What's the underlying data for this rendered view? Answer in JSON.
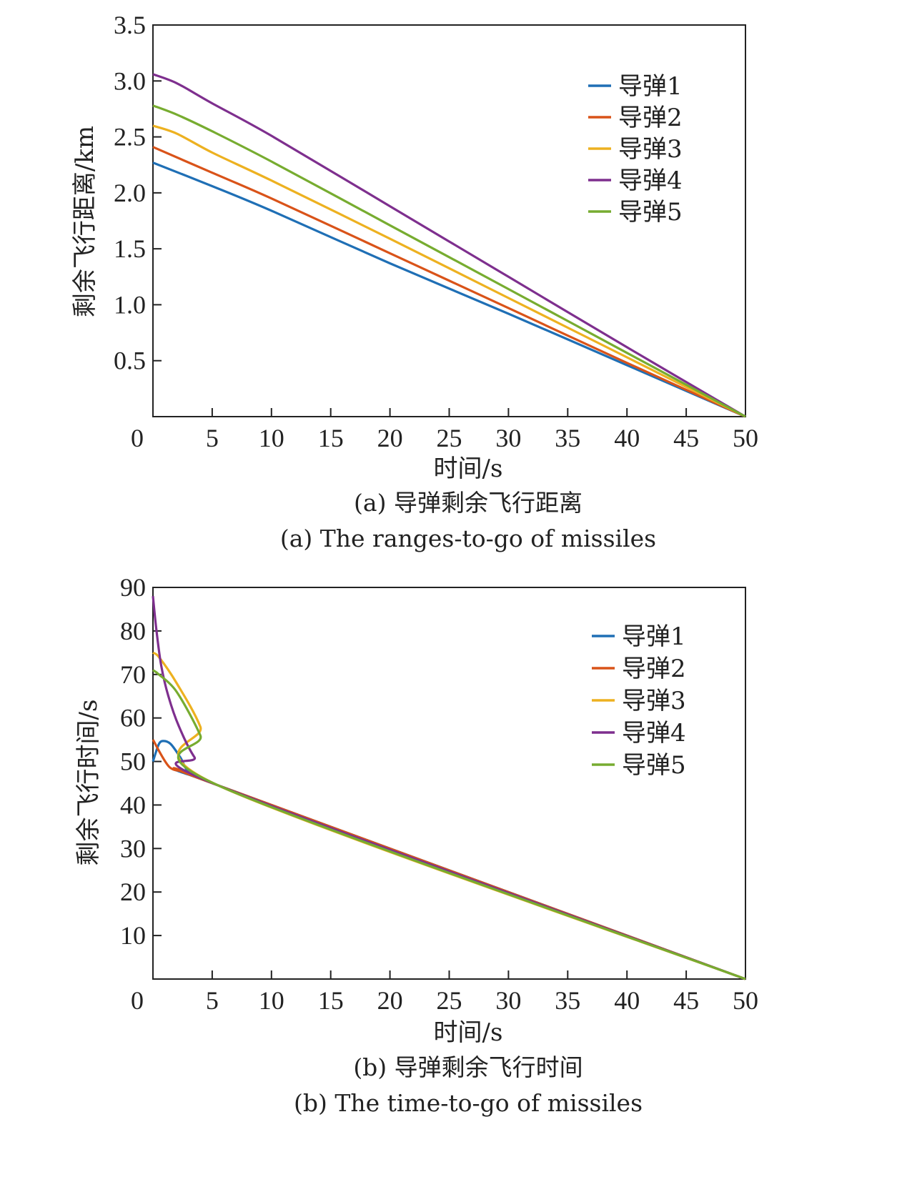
{
  "chart_data": [
    {
      "type": "line",
      "panel": "a",
      "xlabel": "时间/s",
      "ylabel": "剩余飞行距离/km",
      "caption_cn": "(a) 导弹剩余飞行距离",
      "caption_en": "(a) The ranges-to-go of missiles",
      "xlim": [
        0,
        50
      ],
      "ylim": [
        0,
        3.5
      ],
      "xticks": [
        "0",
        "5",
        "10",
        "15",
        "20",
        "25",
        "30",
        "35",
        "40",
        "45",
        "50"
      ],
      "yticks": [
        "0.5",
        "1.0",
        "1.5",
        "2.0",
        "2.5",
        "3.0",
        "3.5"
      ],
      "legend_position": "top-right",
      "series": [
        {
          "name": "导弹1",
          "color": "#1f6fb5",
          "x": [
            0,
            5,
            10,
            20,
            30,
            40,
            50
          ],
          "y": [
            2.27,
            2.06,
            1.84,
            1.37,
            0.92,
            0.46,
            0.0
          ]
        },
        {
          "name": "导弹2",
          "color": "#d95319",
          "x": [
            0,
            5,
            10,
            20,
            30,
            40,
            50
          ],
          "y": [
            2.41,
            2.18,
            1.95,
            1.46,
            0.97,
            0.48,
            0.0
          ]
        },
        {
          "name": "导弹3",
          "color": "#edb120",
          "x": [
            0,
            2,
            5,
            10,
            20,
            30,
            40,
            50
          ],
          "y": [
            2.6,
            2.53,
            2.36,
            2.11,
            1.59,
            1.06,
            0.53,
            0.0
          ]
        },
        {
          "name": "导弹4",
          "color": "#7e2f8e",
          "x": [
            0,
            2,
            5,
            10,
            20,
            30,
            40,
            50
          ],
          "y": [
            3.06,
            2.98,
            2.8,
            2.51,
            1.88,
            1.25,
            0.62,
            0.0
          ]
        },
        {
          "name": "导弹5",
          "color": "#77ac30",
          "x": [
            0,
            2,
            5,
            10,
            20,
            30,
            40,
            50
          ],
          "y": [
            2.78,
            2.7,
            2.55,
            2.28,
            1.71,
            1.14,
            0.57,
            0.0
          ]
        }
      ]
    },
    {
      "type": "line",
      "panel": "b",
      "xlabel": "时间/s",
      "ylabel": "剩余飞行时间/s",
      "caption_cn": "(b) 导弹剩余飞行时间",
      "caption_en": "(b) The time-to-go of missiles",
      "xlim": [
        0,
        50
      ],
      "ylim": [
        0,
        90
      ],
      "xticks": [
        "0",
        "5",
        "10",
        "15",
        "20",
        "25",
        "30",
        "35",
        "40",
        "45",
        "50"
      ],
      "yticks": [
        "10",
        "20",
        "30",
        "40",
        "50",
        "60",
        "70",
        "80",
        "90"
      ],
      "legend_position": "top-right",
      "series": [
        {
          "name": "导弹1",
          "color": "#1f6fb5",
          "x": [
            0,
            0.5,
            0.9,
            1.5,
            2.3,
            3.2,
            5.5,
            50
          ],
          "y": [
            50,
            54,
            54.7,
            54,
            51,
            47,
            44.5,
            0
          ]
        },
        {
          "name": "导弹2",
          "color": "#d95319",
          "x": [
            0,
            1.4,
            3,
            5.5,
            50
          ],
          "y": [
            55,
            48.7,
            47.5,
            44.5,
            0
          ]
        },
        {
          "name": "导弹3",
          "color": "#edb120",
          "x": [
            0,
            0.5,
            2,
            4,
            5.5,
            50
          ],
          "y": [
            75,
            74,
            68,
            58,
            44.5,
            0
          ]
        },
        {
          "name": "导弹4",
          "color": "#7e2f8e",
          "x": [
            0,
            0.3,
            0.7,
            1.3,
            2.2,
            3.5,
            5.5,
            50
          ],
          "y": [
            88,
            80,
            72,
            65,
            58,
            51,
            44.5,
            0
          ]
        },
        {
          "name": "导弹5",
          "color": "#77ac30",
          "x": [
            0,
            0.5,
            2,
            4,
            5.5,
            50
          ],
          "y": [
            71,
            70,
            66,
            56,
            44.5,
            0
          ]
        }
      ]
    }
  ]
}
